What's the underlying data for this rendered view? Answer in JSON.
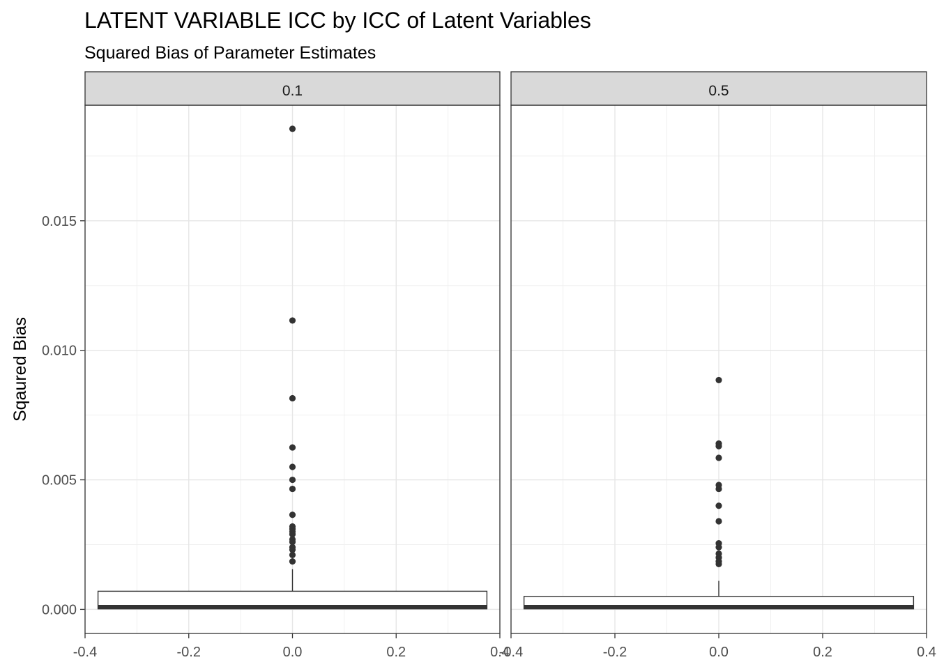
{
  "chart_data": {
    "type": "boxplot",
    "title": "LATENT VARIABLE ICC by ICC of Latent Variables",
    "subtitle": "Squared Bias of Parameter Estimates",
    "ylabel": "Sqaured Bias",
    "xlabel": "",
    "ylim": [
      -0.00093,
      0.01946
    ],
    "xlim": [
      -0.4,
      0.4
    ],
    "y_ticks": [
      0.0,
      0.005,
      0.01,
      0.015
    ],
    "y_tick_labels": [
      "0.000",
      "0.005",
      "0.010",
      "0.015"
    ],
    "x_ticks": [
      -0.4,
      -0.2,
      0.0,
      0.2,
      0.4
    ],
    "x_tick_labels": [
      "-0.4",
      "-0.2",
      "0.0",
      "0.2",
      "0.4"
    ],
    "grid": true,
    "facets": [
      {
        "label": "0.1",
        "box": {
          "x_min": -0.375,
          "x_max": 0.375,
          "lower_whisker": 0.0,
          "q1": 2e-05,
          "median": 8e-05,
          "q3": 0.0007,
          "upper_whisker": 0.00155
        },
        "outliers": [
          0.01855,
          0.01115,
          0.00815,
          0.00625,
          0.0055,
          0.005,
          0.00465,
          0.00365,
          0.0032,
          0.0031,
          0.003,
          0.0029,
          0.0027,
          0.0026,
          0.0024,
          0.0023,
          0.0021,
          0.00185
        ]
      },
      {
        "label": "0.5",
        "box": {
          "x_min": -0.375,
          "x_max": 0.375,
          "lower_whisker": 0.0,
          "q1": 2e-05,
          "median": 8e-05,
          "q3": 0.0005,
          "upper_whisker": 0.0011
        },
        "outliers": [
          0.00885,
          0.0064,
          0.0063,
          0.00585,
          0.0048,
          0.00465,
          0.004,
          0.0034,
          0.00255,
          0.0024,
          0.00215,
          0.002,
          0.00185,
          0.00175
        ]
      }
    ]
  }
}
